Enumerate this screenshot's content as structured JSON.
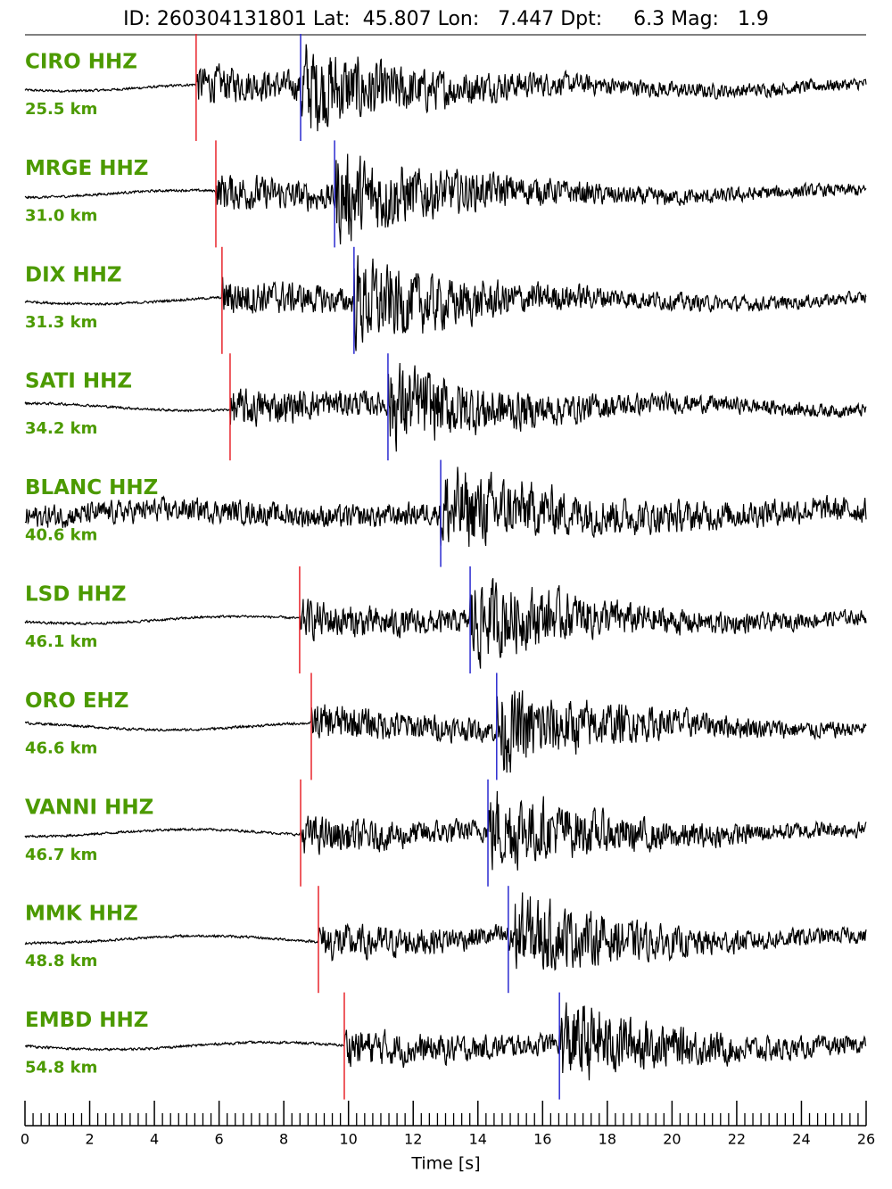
{
  "chart_data": {
    "type": "seismogram",
    "title": "ID: 260304131801 Lat:  45.807 Lon:   7.447 Dpt:     6.3 Mag:   1.9",
    "xlabel": "Time [s]",
    "xlim": [
      0,
      26
    ],
    "xticks": [
      0,
      2,
      4,
      6,
      8,
      10,
      12,
      14,
      16,
      18,
      20,
      22,
      24,
      26
    ],
    "label_color": "#4c9a00",
    "p_color": "#e8242b",
    "s_color": "#2a2ad0",
    "trace_color": "#000000",
    "traces": [
      {
        "station": "CIRO HHZ",
        "distance": "25.5 km",
        "p_pick": 5.29,
        "s_pick": 8.52
      },
      {
        "station": "MRGE HHZ",
        "distance": "31.0 km",
        "p_pick": 5.9,
        "s_pick": 9.57
      },
      {
        "station": "DIX HHZ",
        "distance": "31.3 km",
        "p_pick": 6.09,
        "s_pick": 10.17
      },
      {
        "station": "SATI HHZ",
        "distance": "34.2 km",
        "p_pick": 6.34,
        "s_pick": 11.22
      },
      {
        "station": "BLANC HHZ",
        "distance": "40.6 km",
        "p_pick": null,
        "s_pick": 12.85
      },
      {
        "station": "LSD HHZ",
        "distance": "46.1 km",
        "p_pick": 8.49,
        "s_pick": 13.76
      },
      {
        "station": "ORO EHZ",
        "distance": "46.6 km",
        "p_pick": 8.85,
        "s_pick": 14.58
      },
      {
        "station": "VANNI HHZ",
        "distance": "46.7 km",
        "p_pick": 8.52,
        "s_pick": 14.31
      },
      {
        "station": "MMK HHZ",
        "distance": "48.8 km",
        "p_pick": 9.07,
        "s_pick": 14.94
      },
      {
        "station": "EMBD HHZ",
        "distance": "54.8 km",
        "p_pick": 9.87,
        "s_pick": 16.52
      }
    ]
  }
}
